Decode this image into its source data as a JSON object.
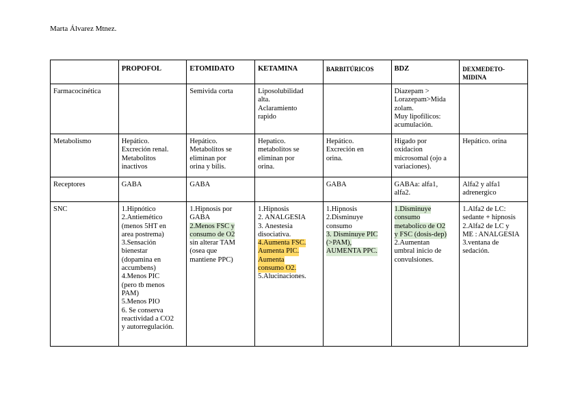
{
  "header": {
    "author": "Marta Álvarez Mtnez."
  },
  "table": {
    "columns": [
      "",
      "PROPOFOL",
      "ETOMIDATO",
      "KETAMINA",
      "BARBITÚRICOS",
      "BDZ",
      [
        "DEXMEDETO-",
        "MIDINA"
      ]
    ],
    "rows": [
      [
        [
          "Farmacocinética"
        ],
        [],
        [
          "Semivida corta"
        ],
        [
          "Liposolubilidad",
          "alta.",
          "Aclaramiento",
          "rapido"
        ],
        [],
        [
          "Diazepam >",
          "Lorazepam>Mida",
          "zolam.",
          "Muy lipofílicos:",
          "acumulación."
        ],
        []
      ],
      [
        [
          "Metabolismo"
        ],
        [
          "Hepático.",
          "Excreción renal.",
          "Metabolitos",
          "inactivos"
        ],
        [
          "Hepático.",
          "Metabolitos se",
          "eliminan por",
          "orina y bilis."
        ],
        [
          "Hepatico.",
          "metabolitos se",
          "eliminan por",
          "orina."
        ],
        [
          "Hepático.",
          "Excreción en",
          "orina."
        ],
        [
          "Higado por",
          "oxidacion",
          "microsomal (ojo a",
          "variaciones)."
        ],
        [
          "Hepático. orina"
        ]
      ],
      [
        [
          "Receptores"
        ],
        [
          "GABA"
        ],
        [
          "GABA"
        ],
        [],
        [
          "GABA"
        ],
        [
          "GABAa: alfa1,",
          "alfa2."
        ],
        [
          "Alfa2 y alfa1",
          "adrenergico"
        ]
      ],
      [
        [
          "SNC"
        ],
        [
          "1.Hipnótico",
          "2.Antiemético",
          "(menos 5HT en",
          "area postrema)",
          "3.Sensación",
          "bienestar",
          "(dopamina en",
          "accumbens)",
          "4.Menos PIC",
          "(pero tb menos",
          "PAM)",
          "5.Menos PIO",
          "6. Se conserva",
          "reactividad a CO2",
          "y autorregulación."
        ],
        [
          "1.Hipnosis por",
          "GABA",
          {
            "text": "2.Menos FSC y",
            "highlight": "green"
          },
          {
            "text": "consumo de O2",
            "highlight": "green"
          },
          "sin alterar TAM",
          "(osea que",
          "mantiene PPC)"
        ],
        [
          "1.Hipnosis",
          "2. ANALGESIA",
          "3. Anestesia",
          "disociativa.",
          {
            "text": "4.Aumenta FSC.",
            "highlight": "yellow"
          },
          {
            "text": "Aumenta PIC.",
            "highlight": "yellow"
          },
          {
            "text": "Aumenta",
            "highlight": "yellow"
          },
          {
            "text": "consumo O2.",
            "highlight": "yellow"
          },
          "5.Alucinaciones."
        ],
        [
          "1.Hipnosis",
          "2.Disminuye",
          "consumo",
          {
            "text": "3. Disminuye PIC",
            "highlight": "green"
          },
          {
            "text": "(>PAM),",
            "highlight": "green"
          },
          {
            "text": "AUMENTA PPC.",
            "highlight": "green"
          }
        ],
        [
          {
            "text": "1.Disminuye",
            "highlight": "green"
          },
          {
            "text": "consumo",
            "highlight": "green"
          },
          {
            "text": "metabolico de O2",
            "highlight": "green"
          },
          {
            "text": "y FSC (dosis-dep)",
            "highlight": "green"
          },
          "2.Aumentan",
          "umbral inicio de",
          "convulsiones."
        ],
        [
          "1.Alfa2 de LC:",
          "sedante + hipnosis",
          "2.Alfa2 de LC y",
          "ME : ANALGESIA",
          "3.ventana de",
          "sedación."
        ]
      ]
    ]
  }
}
